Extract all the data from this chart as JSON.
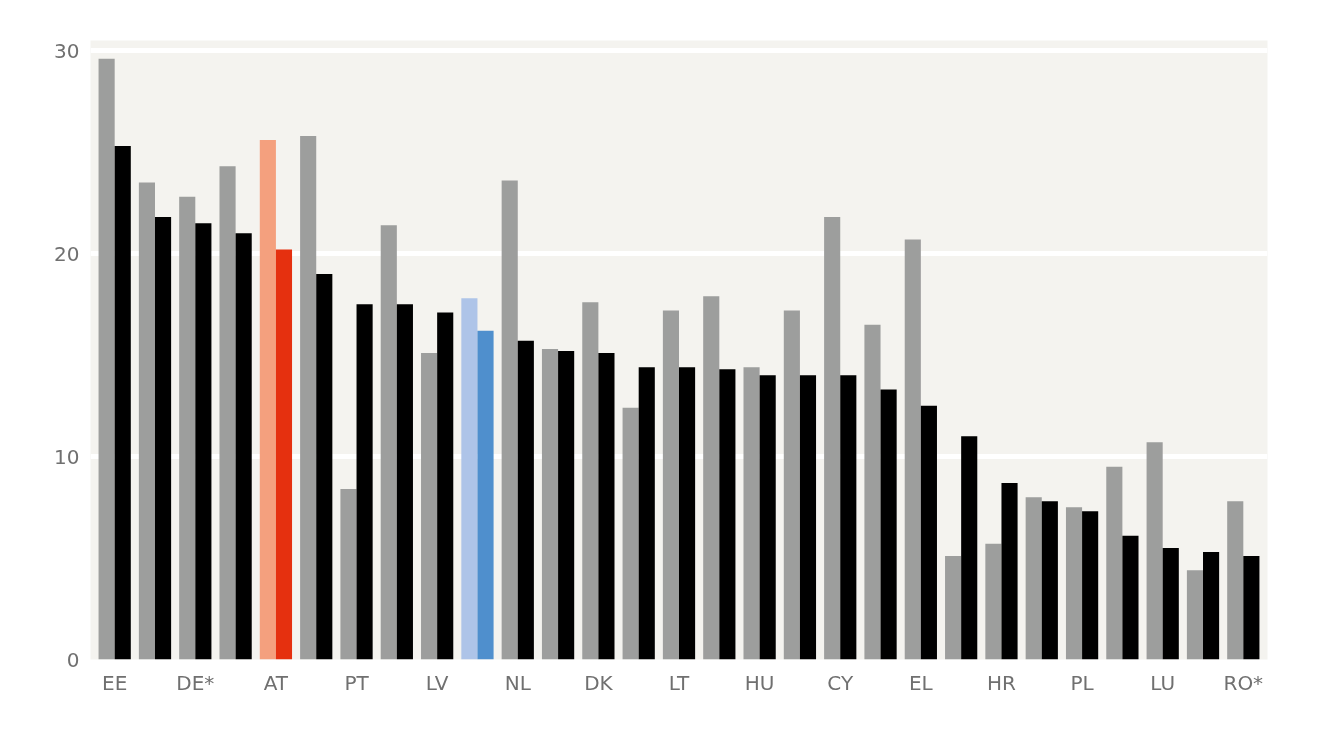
{
  "chart_data": {
    "type": "bar",
    "categories": [
      "EE",
      null,
      "DE*",
      null,
      "AT",
      null,
      "PT",
      null,
      "LV",
      null,
      "NL",
      null,
      "DK",
      null,
      "LT",
      null,
      "HU",
      null,
      "CY",
      null,
      "EL",
      null,
      "HR",
      null,
      "PL",
      null,
      "LU",
      null,
      "RO*"
    ],
    "series": [
      {
        "colors": [
          "#9d9e9d",
          "#9d9e9d",
          "#9d9e9d",
          "#9d9e9d",
          "#f4a07e",
          "#9d9e9d",
          "#9d9e9d",
          "#9d9e9d",
          "#9d9e9d",
          "#aec4e8",
          "#9d9e9d",
          "#9d9e9d",
          "#9d9e9d",
          "#9d9e9d",
          "#9d9e9d",
          "#9d9e9d",
          "#9d9e9d",
          "#9d9e9d",
          "#9d9e9d",
          "#9d9e9d",
          "#9d9e9d",
          "#9d9e9d",
          "#9d9e9d",
          "#9d9e9d",
          "#9d9e9d",
          "#9d9e9d",
          "#9d9e9d",
          "#9d9e9d",
          "#9d9e9d"
        ],
        "values": [
          29.6,
          23.5,
          22.8,
          24.3,
          25.6,
          25.8,
          8.4,
          21.4,
          15.1,
          17.8,
          23.6,
          15.3,
          17.6,
          12.4,
          17.2,
          17.9,
          14.4,
          17.2,
          21.8,
          16.5,
          20.7,
          5.1,
          5.7,
          8.0,
          7.5,
          9.5,
          10.7,
          4.4,
          7.8
        ]
      },
      {
        "colors": [
          "#000000",
          "#000000",
          "#000000",
          "#000000",
          "#e5300f",
          "#000000",
          "#000000",
          "#000000",
          "#000000",
          "#4f8fcd",
          "#000000",
          "#000000",
          "#000000",
          "#000000",
          "#000000",
          "#000000",
          "#000000",
          "#000000",
          "#000000",
          "#000000",
          "#000000",
          "#000000",
          "#000000",
          "#000000",
          "#000000",
          "#000000",
          "#000000",
          "#000000",
          "#000000"
        ],
        "values": [
          25.3,
          21.8,
          21.5,
          21.0,
          20.2,
          19.0,
          17.5,
          17.5,
          17.1,
          16.2,
          15.7,
          15.2,
          15.1,
          14.4,
          14.4,
          14.3,
          14.0,
          14.0,
          14.0,
          13.3,
          12.5,
          11.0,
          8.7,
          7.8,
          7.3,
          6.1,
          5.5,
          5.3,
          5.1
        ]
      }
    ],
    "ylim": [
      0,
      30.5
    ],
    "yticks": [
      0,
      10,
      20,
      30
    ],
    "grid": "y"
  }
}
